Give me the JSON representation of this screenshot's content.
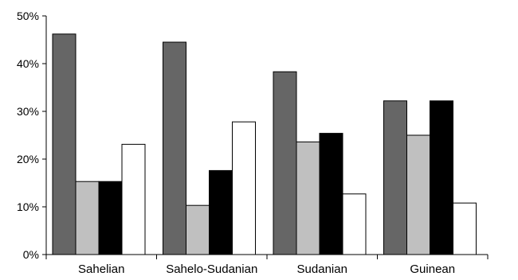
{
  "chart_data": {
    "type": "bar",
    "title": "",
    "xlabel": "",
    "ylabel": "",
    "categories": [
      "Sahelian",
      "Sahelo-Sudanian",
      "Sudanian",
      "Guinean"
    ],
    "series": [
      {
        "values": [
          46.2,
          44.5,
          38.3,
          32.2
        ],
        "color": "#666666"
      },
      {
        "values": [
          15.3,
          10.3,
          23.6,
          25.0
        ],
        "color": "#c0c0c0"
      },
      {
        "values": [
          15.3,
          17.6,
          25.4,
          32.2
        ],
        "color": "#000000"
      },
      {
        "values": [
          23.1,
          27.8,
          12.7,
          10.8
        ],
        "color": "#ffffff"
      }
    ],
    "ylim": [
      0,
      50
    ],
    "yticks": [
      0,
      10,
      20,
      30,
      40,
      50
    ],
    "ytick_labels": [
      "0%",
      "10%",
      "20%",
      "30%",
      "40%",
      "50%"
    ],
    "grid": false,
    "legend": "none"
  }
}
